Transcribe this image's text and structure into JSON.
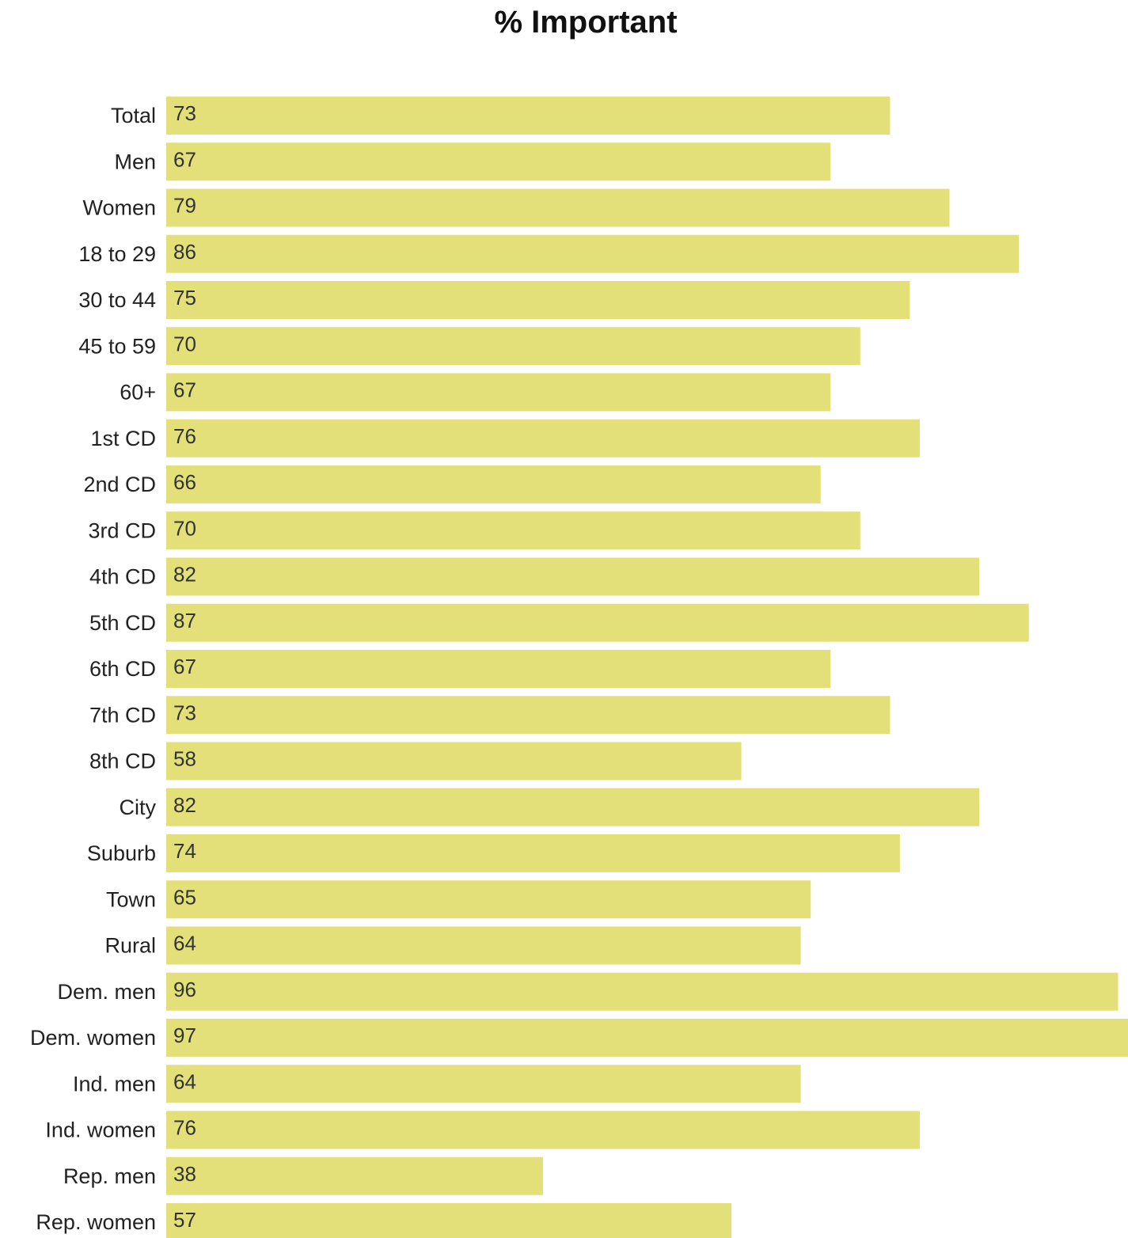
{
  "chart_data": {
    "type": "bar",
    "orientation": "horizontal",
    "title": "% Important",
    "xlabel": "",
    "ylabel": "",
    "xlim": [
      0,
      97
    ],
    "grid": false,
    "bar_color": "#e3e07a",
    "categories": [
      "Total",
      "Men",
      "Women",
      "18 to 29",
      "30 to 44",
      "45 to 59",
      "60+",
      "1st CD",
      "2nd CD",
      "3rd CD",
      "4th CD",
      "5th CD",
      "6th CD",
      "7th CD",
      "8th CD",
      "City",
      "Suburb",
      "Town",
      "Rural",
      "Dem. men",
      "Dem. women",
      "Ind. men",
      "Ind. women",
      "Rep. men",
      "Rep. women"
    ],
    "values": [
      73,
      67,
      79,
      86,
      75,
      70,
      67,
      76,
      66,
      70,
      82,
      87,
      67,
      73,
      58,
      82,
      74,
      65,
      64,
      96,
      97,
      64,
      76,
      38,
      57
    ]
  }
}
